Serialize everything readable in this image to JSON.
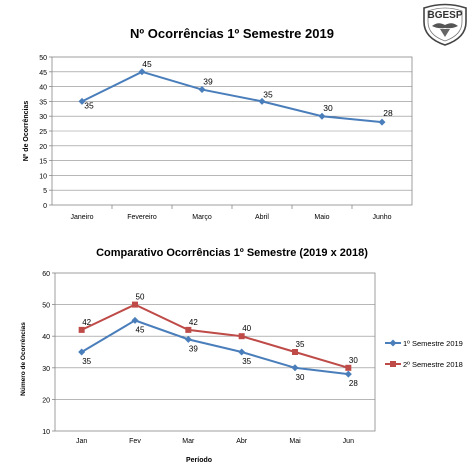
{
  "logo": {
    "text": "BGESP"
  },
  "chart_data": [
    {
      "type": "line",
      "title": "Nº Ocorrências 1º Semestre 2019",
      "xlabel": "",
      "ylabel": "Nº de Ocorrências",
      "categories": [
        "Janeiro",
        "Fevereiro",
        "Março",
        "Abril",
        "Maio",
        "Junho"
      ],
      "series": [
        {
          "values": [
            35,
            45,
            39,
            35,
            30,
            28
          ],
          "color": "#4a7ebb"
        }
      ],
      "ylim": [
        0,
        50
      ],
      "yticks": [
        0,
        5,
        10,
        15,
        20,
        25,
        30,
        35,
        40,
        45,
        50
      ],
      "grid": true,
      "legend": "none",
      "data_labels": true
    },
    {
      "type": "line",
      "title": "Comparativo  Ocorrências  1º Semestre  (2019 x 2018)",
      "xlabel": "Período",
      "ylabel": "Número de Ocorrências",
      "categories": [
        "Jan",
        "Fev",
        "Mar",
        "Abr",
        "Mai",
        "Jun"
      ],
      "series": [
        {
          "name": "1º Semestre 2019",
          "values": [
            35,
            45,
            39,
            35,
            30,
            28
          ],
          "color": "#4a7ebb"
        },
        {
          "name": "2º Semestre 2018",
          "values": [
            42,
            50,
            42,
            40,
            35,
            30
          ],
          "color": "#be4b48"
        }
      ],
      "ylim": [
        10,
        60
      ],
      "yticks": [
        10,
        20,
        30,
        40,
        50,
        60
      ],
      "grid": true,
      "legend": "right",
      "data_labels": true
    }
  ]
}
